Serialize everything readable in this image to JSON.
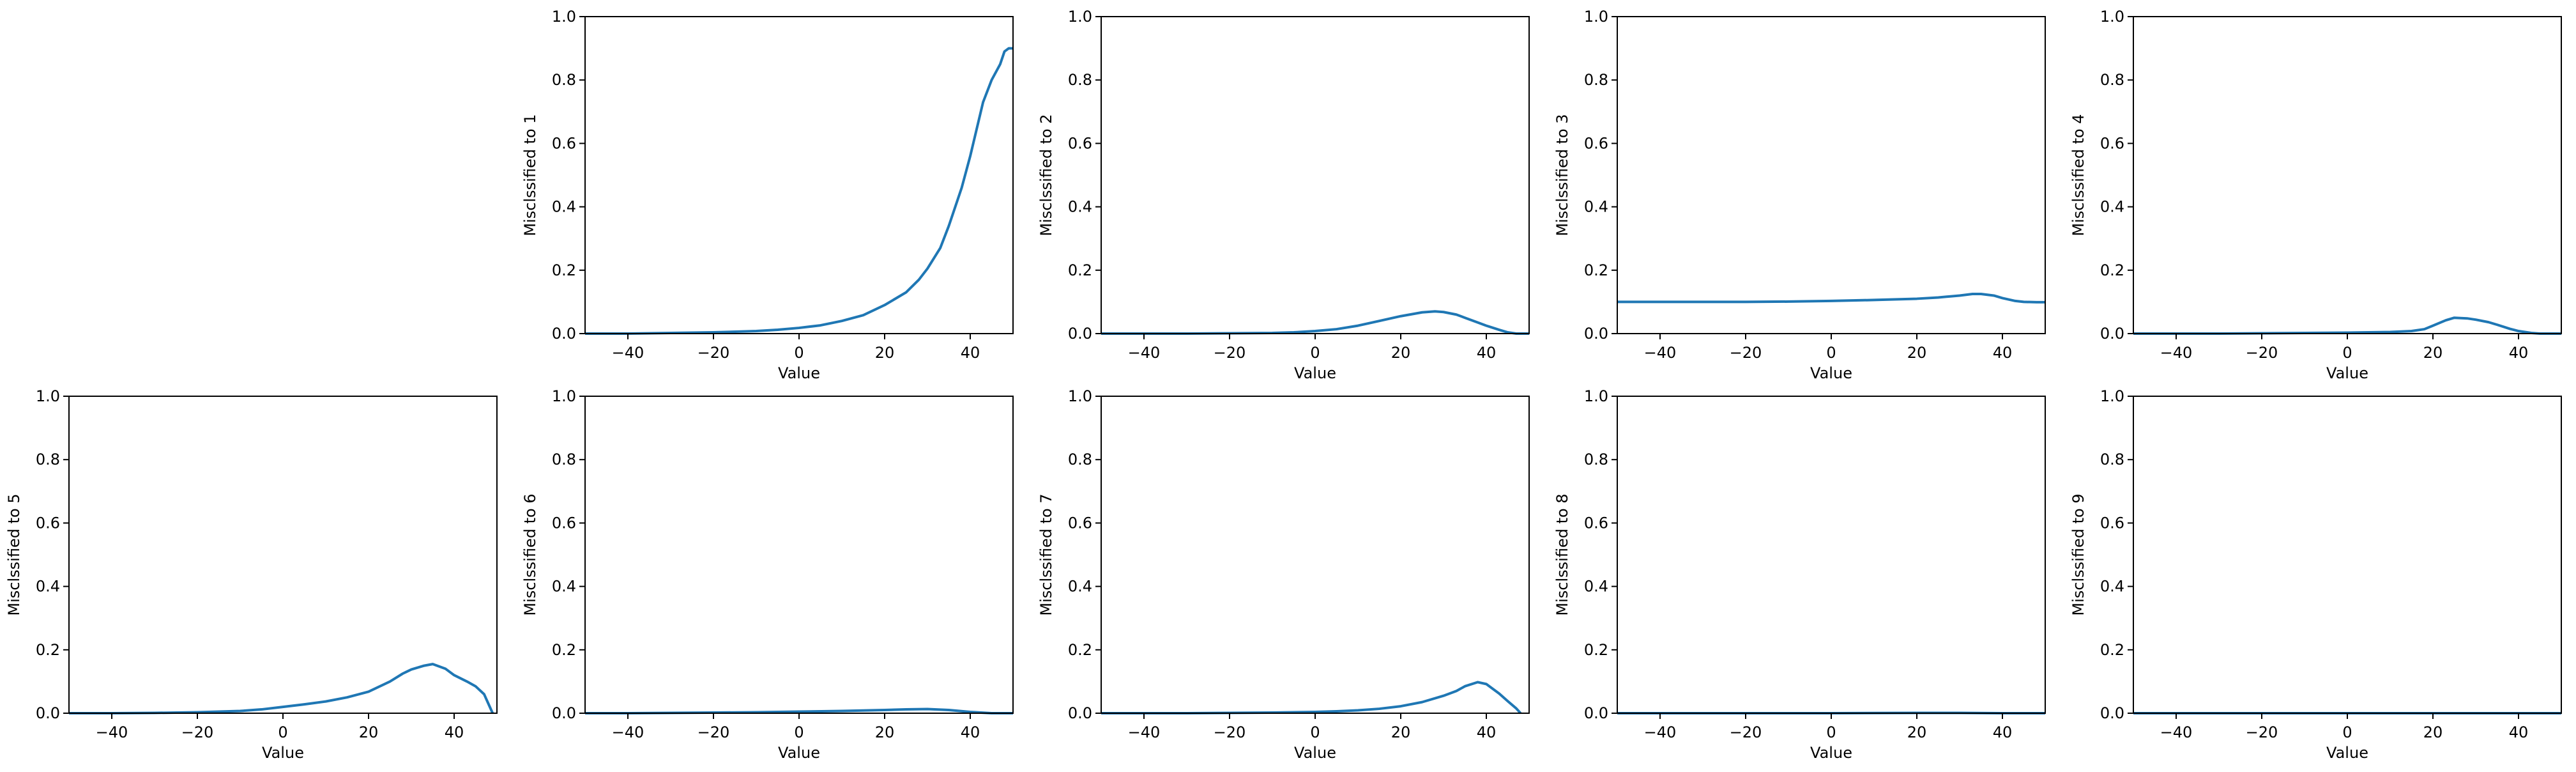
{
  "chart_data": [
    {
      "type": "line",
      "xlabel": "Value",
      "ylabel": "Misclssified to 1",
      "xlim": [
        -50,
        50
      ],
      "ylim": [
        0,
        1
      ],
      "xticks": [
        -40,
        -20,
        0,
        20,
        40
      ],
      "yticks": [
        0.0,
        0.2,
        0.4,
        0.6,
        0.8,
        1.0
      ],
      "x": [
        -50,
        -40,
        -30,
        -20,
        -10,
        -5,
        0,
        5,
        10,
        15,
        20,
        25,
        28,
        30,
        33,
        35,
        38,
        40,
        43,
        45,
        47,
        48,
        49,
        50
      ],
      "y": [
        0.0,
        0.0,
        0.002,
        0.004,
        0.008,
        0.012,
        0.018,
        0.026,
        0.04,
        0.058,
        0.09,
        0.13,
        0.17,
        0.205,
        0.27,
        0.34,
        0.46,
        0.56,
        0.73,
        0.8,
        0.85,
        0.89,
        0.9,
        0.9
      ]
    },
    {
      "type": "line",
      "xlabel": "Value",
      "ylabel": "Misclssified to 2",
      "xlim": [
        -50,
        50
      ],
      "ylim": [
        0,
        1
      ],
      "xticks": [
        -40,
        -20,
        0,
        20,
        40
      ],
      "yticks": [
        0.0,
        0.2,
        0.4,
        0.6,
        0.8,
        1.0
      ],
      "x": [
        -50,
        -40,
        -30,
        -20,
        -10,
        -5,
        0,
        5,
        10,
        15,
        20,
        25,
        28,
        30,
        33,
        35,
        38,
        40,
        43,
        45,
        47,
        50
      ],
      "y": [
        0.0,
        0.0,
        0.0,
        0.001,
        0.002,
        0.004,
        0.008,
        0.014,
        0.025,
        0.04,
        0.055,
        0.067,
        0.07,
        0.068,
        0.06,
        0.05,
        0.035,
        0.025,
        0.012,
        0.004,
        0.0,
        0.0
      ]
    },
    {
      "type": "line",
      "xlabel": "Value",
      "ylabel": "Misclssified to 3",
      "xlim": [
        -50,
        50
      ],
      "ylim": [
        0,
        1
      ],
      "xticks": [
        -40,
        -20,
        0,
        20,
        40
      ],
      "yticks": [
        0.0,
        0.2,
        0.4,
        0.6,
        0.8,
        1.0
      ],
      "x": [
        -50,
        -40,
        -30,
        -20,
        -10,
        0,
        10,
        20,
        25,
        30,
        33,
        35,
        38,
        40,
        43,
        45,
        48,
        50
      ],
      "y": [
        0.1,
        0.1,
        0.1,
        0.1,
        0.101,
        0.103,
        0.106,
        0.11,
        0.114,
        0.12,
        0.125,
        0.125,
        0.12,
        0.112,
        0.103,
        0.1,
        0.099,
        0.099
      ]
    },
    {
      "type": "line",
      "xlabel": "Value",
      "ylabel": "Misclssified to 4",
      "xlim": [
        -50,
        50
      ],
      "ylim": [
        0,
        1
      ],
      "xticks": [
        -40,
        -20,
        0,
        20,
        40
      ],
      "yticks": [
        0.0,
        0.2,
        0.4,
        0.6,
        0.8,
        1.0
      ],
      "x": [
        -50,
        -40,
        -30,
        -20,
        -10,
        0,
        10,
        15,
        18,
        20,
        23,
        25,
        28,
        30,
        33,
        35,
        38,
        40,
        43,
        45,
        50
      ],
      "y": [
        0.0,
        0.0,
        0.0,
        0.001,
        0.002,
        0.003,
        0.005,
        0.008,
        0.014,
        0.025,
        0.042,
        0.05,
        0.048,
        0.044,
        0.036,
        0.028,
        0.015,
        0.008,
        0.002,
        0.0,
        0.0
      ]
    },
    {
      "type": "line",
      "xlabel": "Value",
      "ylabel": "Misclssified to 5",
      "xlim": [
        -50,
        50
      ],
      "ylim": [
        0,
        1
      ],
      "xticks": [
        -40,
        -20,
        0,
        20,
        40
      ],
      "yticks": [
        0.0,
        0.2,
        0.4,
        0.6,
        0.8,
        1.0
      ],
      "x": [
        -50,
        -40,
        -30,
        -20,
        -10,
        -5,
        0,
        5,
        10,
        15,
        20,
        25,
        28,
        30,
        33,
        35,
        38,
        40,
        43,
        45,
        47,
        48,
        49
      ],
      "y": [
        0.0,
        0.0,
        0.001,
        0.003,
        0.007,
        0.012,
        0.02,
        0.028,
        0.037,
        0.05,
        0.068,
        0.1,
        0.125,
        0.138,
        0.15,
        0.155,
        0.14,
        0.12,
        0.1,
        0.085,
        0.06,
        0.03,
        0.0
      ]
    },
    {
      "type": "line",
      "xlabel": "Value",
      "ylabel": "Misclssified to 6",
      "xlim": [
        -50,
        50
      ],
      "ylim": [
        0,
        1
      ],
      "xticks": [
        -40,
        -20,
        0,
        20,
        40
      ],
      "yticks": [
        0.0,
        0.2,
        0.4,
        0.6,
        0.8,
        1.0
      ],
      "x": [
        -50,
        -40,
        -30,
        -20,
        -10,
        0,
        10,
        20,
        25,
        30,
        35,
        40,
        45,
        50
      ],
      "y": [
        0.0,
        0.0,
        0.001,
        0.002,
        0.003,
        0.005,
        0.007,
        0.01,
        0.012,
        0.013,
        0.01,
        0.004,
        0.0,
        0.0
      ]
    },
    {
      "type": "line",
      "xlabel": "Value",
      "ylabel": "Misclssified to 7",
      "xlim": [
        -50,
        50
      ],
      "ylim": [
        0,
        1
      ],
      "xticks": [
        -40,
        -20,
        0,
        20,
        40
      ],
      "yticks": [
        0.0,
        0.2,
        0.4,
        0.6,
        0.8,
        1.0
      ],
      "x": [
        -50,
        -40,
        -30,
        -20,
        -10,
        0,
        5,
        10,
        15,
        20,
        25,
        30,
        33,
        35,
        38,
        40,
        43,
        45,
        47,
        48
      ],
      "y": [
        0.0,
        0.0,
        0.0,
        0.001,
        0.002,
        0.004,
        0.006,
        0.009,
        0.014,
        0.022,
        0.035,
        0.055,
        0.07,
        0.085,
        0.098,
        0.092,
        0.062,
        0.038,
        0.015,
        0.0
      ]
    },
    {
      "type": "line",
      "xlabel": "Value",
      "ylabel": "Misclssified to 8",
      "xlim": [
        -50,
        50
      ],
      "ylim": [
        0,
        1
      ],
      "xticks": [
        -40,
        -20,
        0,
        20,
        40
      ],
      "yticks": [
        0.0,
        0.2,
        0.4,
        0.6,
        0.8,
        1.0
      ],
      "x": [
        -50,
        -40,
        -20,
        0,
        20,
        30,
        40,
        50
      ],
      "y": [
        0.0,
        0.0,
        0.0,
        0.0,
        0.001,
        0.001,
        0.0,
        0.0
      ]
    },
    {
      "type": "line",
      "xlabel": "Value",
      "ylabel": "Misclssified to 9",
      "xlim": [
        -50,
        50
      ],
      "ylim": [
        0,
        1
      ],
      "xticks": [
        -40,
        -20,
        0,
        20,
        40
      ],
      "yticks": [
        0.0,
        0.2,
        0.4,
        0.6,
        0.8,
        1.0
      ],
      "x": [
        -50,
        -40,
        -20,
        0,
        20,
        40,
        50
      ],
      "y": [
        0.0,
        0.0,
        0.0,
        0.0,
        0.0,
        0.0,
        0.0
      ]
    }
  ],
  "style": {
    "line_color": "#1f77b4",
    "axis_color": "#000000"
  }
}
